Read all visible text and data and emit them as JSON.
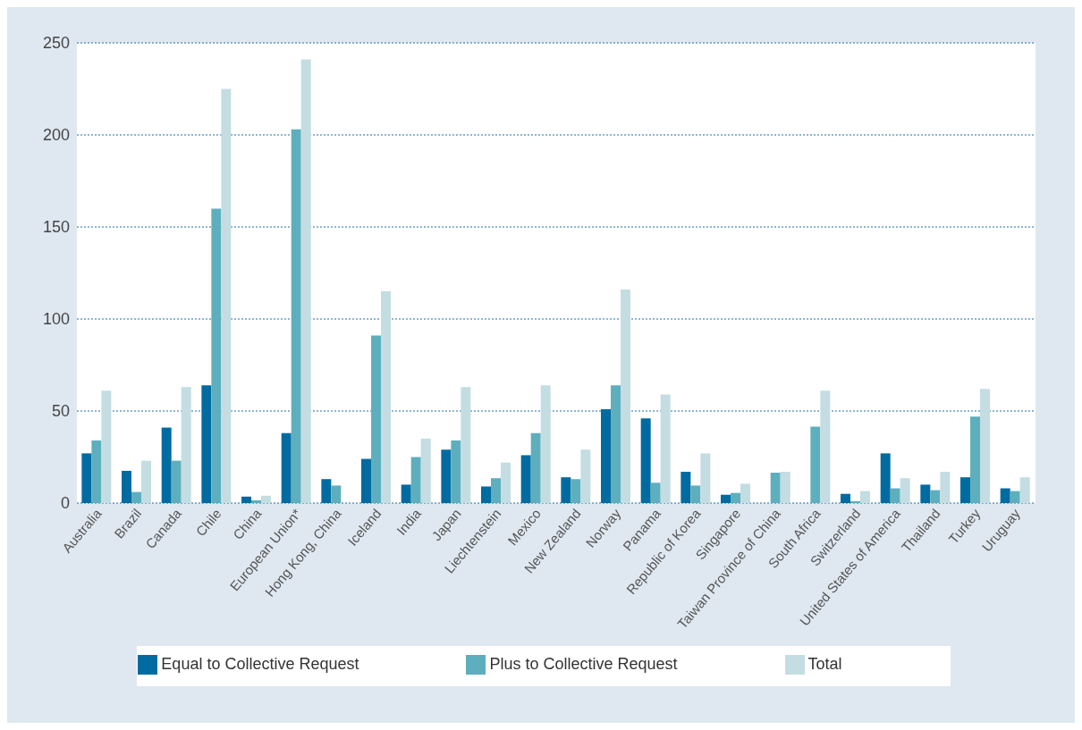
{
  "chart_data": {
    "type": "bar",
    "categories": [
      "Australia",
      "Brazil",
      "Canada",
      "Chile",
      "China",
      "European Union*",
      "Hong Kong, China",
      "Iceland",
      "India",
      "Japan",
      "Liechtenstein",
      "Mexico",
      "New Zealand",
      "Norway",
      "Panama",
      "Republic of Korea",
      "Singapore",
      "Taiwan Province of China",
      "South Africa",
      "Switzerland",
      "United States of America",
      "Thailand",
      "Turkey",
      "Uruguay"
    ],
    "series": [
      {
        "name": "Equal to Collective Request",
        "color": "#006ba1",
        "values": [
          27,
          17.5,
          41,
          64,
          3.5,
          38,
          13,
          24,
          10,
          29,
          9,
          26,
          14,
          51,
          46,
          17,
          4.5,
          null,
          null,
          5,
          27,
          10,
          14,
          8
        ]
      },
      {
        "name": "Plus to Collective Request",
        "color": "#5eafbd",
        "values": [
          34,
          6,
          23,
          160,
          1.5,
          203,
          9.5,
          91,
          25,
          34,
          13.5,
          38,
          13,
          64,
          11,
          9.5,
          5.5,
          16.5,
          41.5,
          1,
          8,
          7,
          47,
          6.5
        ]
      },
      {
        "name": "Total",
        "color": "#c3dde2",
        "values": [
          61,
          23,
          63,
          225,
          4,
          241,
          null,
          115,
          35,
          63,
          22,
          64,
          29,
          116,
          59,
          27,
          10.5,
          17,
          61,
          6.5,
          13.5,
          17,
          62,
          14
        ]
      }
    ],
    "ylim": [
      0,
      250
    ],
    "yticks": [
      0,
      50,
      100,
      150,
      200,
      250
    ],
    "grid": "y",
    "legend": "bottom"
  }
}
